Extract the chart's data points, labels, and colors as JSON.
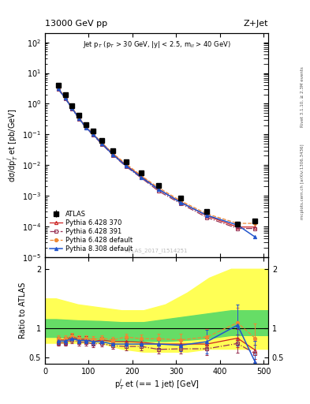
{
  "title_left": "13000 GeV pp",
  "title_right": "Z+Jet",
  "annotation": "Jet p$_T$ (p$_T$ > 30 GeV, |y| < 2.5, m$_{ll}$ > 40 GeV)",
  "watermark": "ATLAS_2017_I1514251",
  "right_label_top": "Rivet 3.1.10, ≥ 2.3M events",
  "right_label_bottom": "mcplots.cern.ch [arXiv:1306.3436]",
  "ylabel_main": "dσ/dp$^j_T$ et [pb/GeV]",
  "ylabel_ratio": "Ratio to ATLAS",
  "xlabel": "p$^j_T$ et (== 1 jet) [GeV]",
  "ylim_main": [
    1e-05,
    200
  ],
  "ylim_ratio": [
    0.4,
    2.2
  ],
  "xlim": [
    0,
    510
  ],
  "atlas_x": [
    30,
    46,
    62,
    78,
    94,
    110,
    130,
    155,
    185,
    220,
    260,
    310,
    370,
    440,
    480
  ],
  "atlas_y": [
    4.0,
    2.0,
    0.85,
    0.42,
    0.21,
    0.13,
    0.065,
    0.03,
    0.013,
    0.0055,
    0.0022,
    0.00085,
    0.0003,
    0.000115,
    0.00015
  ],
  "atlas_yerr": [
    0.3,
    0.15,
    0.06,
    0.03,
    0.015,
    0.009,
    0.005,
    0.002,
    0.001,
    0.0004,
    0.00015,
    6e-05,
    2e-05,
    1e-05,
    3e-05
  ],
  "py6_370_x": [
    30,
    46,
    62,
    78,
    94,
    110,
    130,
    155,
    185,
    220,
    260,
    310,
    370,
    440,
    480
  ],
  "py6_370_y": [
    3.2,
    1.6,
    0.72,
    0.34,
    0.17,
    0.1,
    0.052,
    0.023,
    0.01,
    0.0042,
    0.0016,
    0.00062,
    0.00022,
    9.5e-05,
    9.5e-05
  ],
  "py6_391_x": [
    30,
    46,
    62,
    78,
    94,
    110,
    130,
    155,
    185,
    220,
    260,
    310,
    370,
    440,
    480
  ],
  "py6_391_y": [
    3.0,
    1.5,
    0.68,
    0.32,
    0.16,
    0.095,
    0.048,
    0.021,
    0.009,
    0.0038,
    0.0014,
    0.00055,
    0.000195,
    8.5e-05,
    8.5e-05
  ],
  "py6_def_x": [
    30,
    46,
    62,
    78,
    94,
    110,
    130,
    155,
    185,
    220,
    260,
    310,
    370,
    440,
    480
  ],
  "py6_def_y": [
    3.3,
    1.65,
    0.74,
    0.35,
    0.175,
    0.105,
    0.054,
    0.024,
    0.011,
    0.0045,
    0.0018,
    0.00068,
    0.000255,
    0.000125,
    0.000125
  ],
  "py8_def_x": [
    30,
    46,
    62,
    78,
    94,
    110,
    130,
    155,
    185,
    220,
    260,
    310,
    370,
    440,
    480
  ],
  "py8_def_y": [
    3.1,
    1.55,
    0.7,
    0.33,
    0.165,
    0.1,
    0.05,
    0.022,
    0.0095,
    0.004,
    0.0016,
    0.0006,
    0.00023,
    0.00011,
    4.5e-05
  ],
  "ratio_py6_370_y": [
    0.8,
    0.8,
    0.85,
    0.81,
    0.81,
    0.77,
    0.8,
    0.77,
    0.77,
    0.76,
    0.73,
    0.73,
    0.73,
    0.83,
    0.63
  ],
  "ratio_py6_391_y": [
    0.75,
    0.75,
    0.8,
    0.76,
    0.76,
    0.73,
    0.74,
    0.7,
    0.69,
    0.69,
    0.64,
    0.65,
    0.65,
    0.74,
    0.57
  ],
  "ratio_py6_def_y": [
    0.83,
    0.83,
    0.87,
    0.83,
    0.83,
    0.81,
    0.83,
    0.8,
    0.85,
    0.82,
    0.82,
    0.8,
    0.85,
    1.09,
    0.83
  ],
  "ratio_py8_def_y": [
    0.78,
    0.78,
    0.82,
    0.79,
    0.79,
    0.77,
    0.77,
    0.73,
    0.73,
    0.73,
    0.73,
    0.71,
    0.77,
    1.05,
    0.43
  ],
  "ratio_py6_370_yerr": [
    0.05,
    0.05,
    0.05,
    0.05,
    0.05,
    0.05,
    0.05,
    0.05,
    0.06,
    0.06,
    0.07,
    0.08,
    0.1,
    0.15,
    0.15
  ],
  "ratio_py6_391_yerr": [
    0.05,
    0.05,
    0.05,
    0.05,
    0.05,
    0.05,
    0.05,
    0.05,
    0.06,
    0.06,
    0.07,
    0.08,
    0.1,
    0.15,
    0.15
  ],
  "ratio_py6_def_yerr": [
    0.05,
    0.05,
    0.05,
    0.05,
    0.05,
    0.05,
    0.05,
    0.05,
    0.06,
    0.07,
    0.08,
    0.1,
    0.13,
    0.25,
    0.25
  ],
  "ratio_py8_def_yerr": [
    0.05,
    0.05,
    0.05,
    0.05,
    0.05,
    0.05,
    0.05,
    0.05,
    0.06,
    0.07,
    0.08,
    0.1,
    0.2,
    0.35,
    0.35
  ],
  "color_atlas": "#000000",
  "color_py6_370": "#cc2222",
  "color_py6_391": "#993355",
  "color_py6_def": "#ee8833",
  "color_py8_def": "#2255cc",
  "band_yellow_x": [
    0,
    25,
    75,
    125,
    175,
    225,
    275,
    325,
    375,
    425,
    510
  ],
  "band_yellow_lo": [
    0.75,
    0.75,
    0.75,
    0.75,
    0.65,
    0.6,
    0.6,
    0.6,
    0.65,
    0.65,
    0.65
  ],
  "band_yellow_hi": [
    1.5,
    1.5,
    1.4,
    1.35,
    1.3,
    1.3,
    1.4,
    1.6,
    1.85,
    2.0,
    2.0
  ],
  "band_green_x": [
    0,
    25,
    75,
    125,
    175,
    225,
    275,
    325,
    375,
    425,
    510
  ],
  "band_green_lo": [
    0.85,
    0.85,
    0.82,
    0.8,
    0.78,
    0.78,
    0.78,
    0.8,
    0.83,
    0.88,
    0.88
  ],
  "band_green_hi": [
    1.15,
    1.15,
    1.13,
    1.12,
    1.1,
    1.1,
    1.15,
    1.2,
    1.25,
    1.3,
    1.3
  ]
}
